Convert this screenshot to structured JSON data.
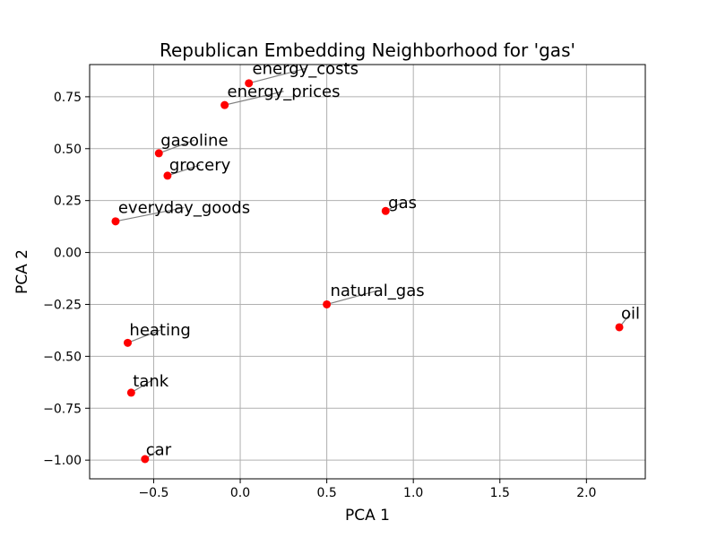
{
  "chart_data": {
    "type": "scatter",
    "title": "Republican Embedding Neighborhood for 'gas'",
    "xlabel": "PCA 1",
    "ylabel": "PCA 2",
    "xlim": [
      -0.87,
      2.34
    ],
    "ylim": [
      -1.09,
      0.905
    ],
    "xticks": [
      -0.5,
      0.0,
      0.5,
      1.0,
      1.5,
      2.0
    ],
    "xtick_labels": [
      "−0.5",
      "0.0",
      "0.5",
      "1.0",
      "1.5",
      "2.0"
    ],
    "yticks": [
      -1.0,
      -0.75,
      -0.5,
      -0.25,
      0.0,
      0.25,
      0.5,
      0.75
    ],
    "ytick_labels": [
      "−1.00",
      "−0.75",
      "−0.50",
      "−0.25",
      "0.00",
      "0.25",
      "0.50",
      "0.75"
    ],
    "grid": true,
    "marker_color": "#ff0000",
    "connector_color": "#808080",
    "points": [
      {
        "label": "energy_costs",
        "x": 0.05,
        "y": 0.815,
        "label_x": 0.07,
        "label_y": 0.86
      },
      {
        "label": "energy_prices",
        "x": -0.09,
        "y": 0.71,
        "label_x": -0.075,
        "label_y": 0.75
      },
      {
        "label": "gasoline",
        "x": -0.47,
        "y": 0.478,
        "label_x": -0.46,
        "label_y": 0.515
      },
      {
        "label": "grocery",
        "x": -0.42,
        "y": 0.37,
        "label_x": -0.41,
        "label_y": 0.395
      },
      {
        "label": "everyday_goods",
        "x": -0.72,
        "y": 0.15,
        "label_x": -0.705,
        "label_y": 0.19
      },
      {
        "label": "gas",
        "x": 0.84,
        "y": 0.2,
        "label_x": 0.855,
        "label_y": 0.215
      },
      {
        "label": "natural_gas",
        "x": 0.5,
        "y": -0.25,
        "label_x": 0.52,
        "label_y": -0.21
      },
      {
        "label": "oil",
        "x": 2.19,
        "y": -0.36,
        "label_x": 2.2,
        "label_y": -0.32
      },
      {
        "label": "heating",
        "x": -0.65,
        "y": -0.435,
        "label_x": -0.64,
        "label_y": -0.4
      },
      {
        "label": "tank",
        "x": -0.63,
        "y": -0.675,
        "label_x": -0.62,
        "label_y": -0.645
      },
      {
        "label": "car",
        "x": -0.55,
        "y": -0.995,
        "label_x": -0.545,
        "label_y": -0.975
      }
    ]
  }
}
